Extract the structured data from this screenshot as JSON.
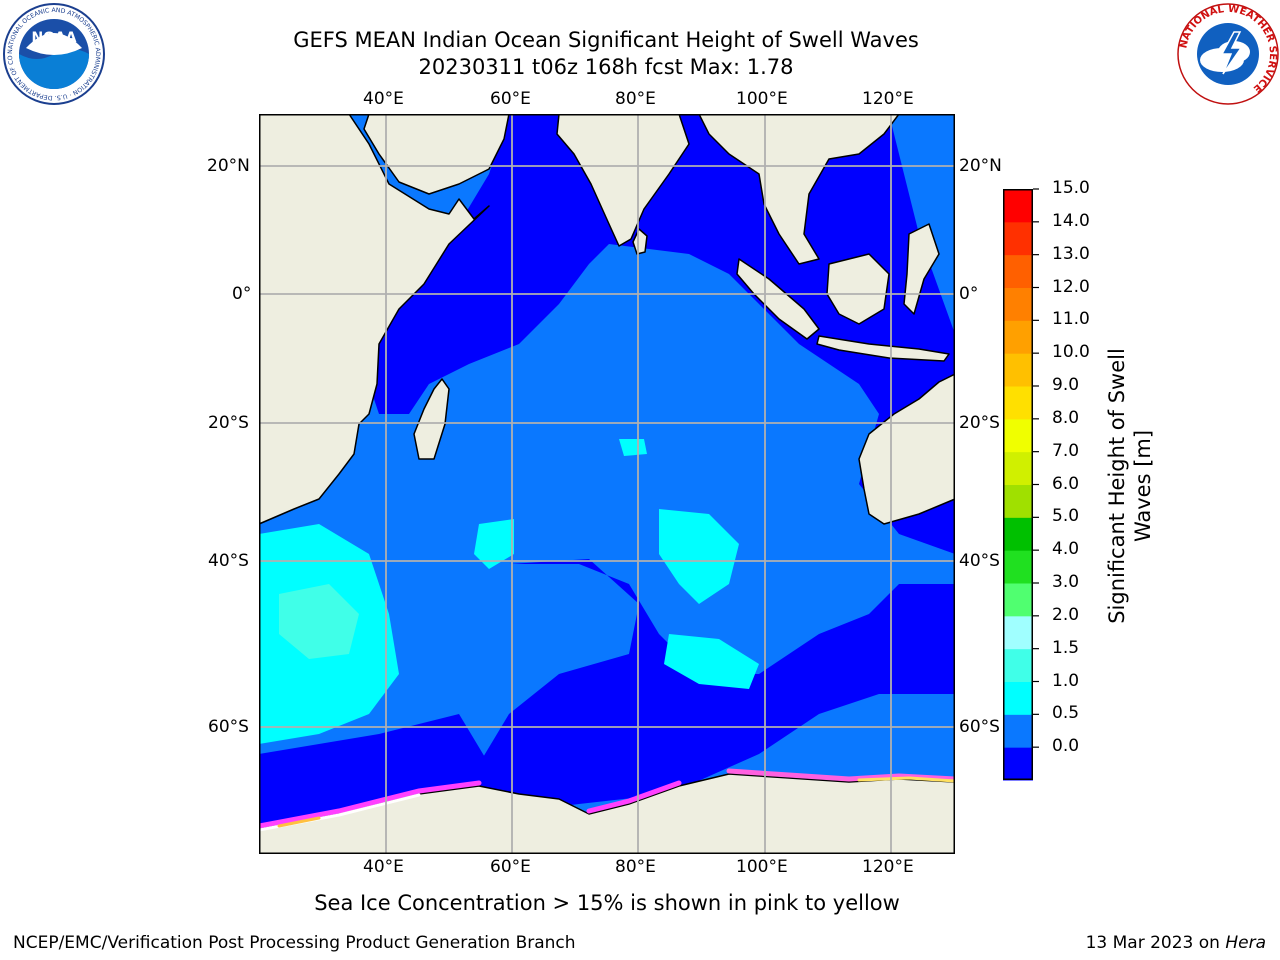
{
  "title": {
    "line1": "GEFS MEAN Indian Ocean Significant Height of Swell Waves",
    "line2": "20230311 t06z 168h fcst   Max: 1.78"
  },
  "map": {
    "lon_ticks": [
      "40°E",
      "60°E",
      "80°E",
      "100°E",
      "120°E"
    ],
    "lat_ticks": [
      "20°N",
      "0°",
      "20°S",
      "40°S",
      "60°S"
    ],
    "lon_range": [
      20,
      130
    ],
    "lat_range": [
      -70,
      28
    ],
    "colors": {
      "land": "#eeeee0",
      "ice": "#ffffff",
      "grid": "#b0b0b0"
    }
  },
  "colorbar": {
    "title": "Significant Height of Swell Waves [m]",
    "title_line1": "Significant Height of Swell",
    "title_line2": "Waves [m]",
    "labels": [
      "15.0",
      "14.0",
      "13.0",
      "12.0",
      "11.0",
      "10.0",
      "9.0",
      "8.0",
      "7.0",
      "6.0",
      "5.0",
      "4.0",
      "3.0",
      "2.0",
      "1.5",
      "1.0",
      "0.5",
      "0.0"
    ],
    "colors": [
      "#0000ff",
      "#0a78ff",
      "#00ffff",
      "#40ffe8",
      "#a0ffff",
      "#50ff70",
      "#20e020",
      "#00c000",
      "#a0e000",
      "#d0f000",
      "#f0ff00",
      "#ffe000",
      "#ffc000",
      "#ffa000",
      "#ff8000",
      "#ff6000",
      "#ff3000",
      "#ff0000"
    ]
  },
  "note": "Sea Ice Concentration > 15% is shown in pink to yellow",
  "footer": {
    "left": "NCEP/EMC/Verification Post Processing Product Generation Branch",
    "right_date": "13 Mar 2023 on",
    "right_host": "Hera"
  },
  "logos": {
    "noaa": "NOAA",
    "noaa_ring": "NATIONAL OCEANIC AND ATMOSPHERIC ADMINISTRATION · U.S. DEPARTMENT OF COMMERCE",
    "nws_ring": "NATIONAL WEATHER SERVICE"
  }
}
